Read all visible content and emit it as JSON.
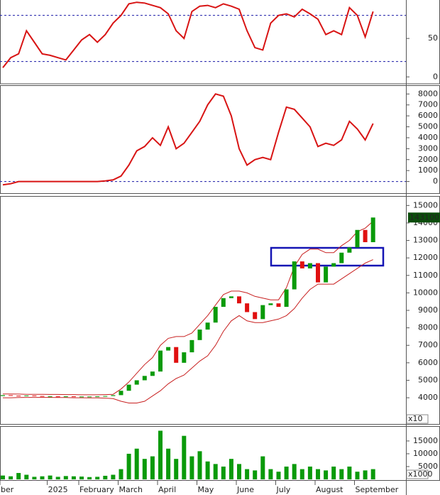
{
  "chart_data": [
    {
      "type": "line",
      "ylim": [
        -9,
        100
      ],
      "yticks": [
        0,
        50
      ],
      "reference_lines": [
        20,
        80
      ],
      "reference_color": "#1a1aa8",
      "series": [
        {
          "color": "#d81414",
          "values": [
            12,
            25,
            30,
            60,
            45,
            30,
            28,
            25,
            22,
            35,
            48,
            55,
            45,
            55,
            70,
            80,
            95,
            97,
            96,
            93,
            90,
            82,
            60,
            50,
            85,
            92,
            93,
            90,
            95,
            92,
            88,
            60,
            38,
            35,
            70,
            80,
            82,
            78,
            88,
            82,
            75,
            55,
            60,
            55,
            90,
            80,
            52,
            85
          ]
        }
      ]
    },
    {
      "type": "line",
      "ylim": [
        -1000,
        8800
      ],
      "yticks": [
        0,
        1000,
        2000,
        3000,
        4000,
        5000,
        6000,
        7000,
        8000
      ],
      "reference_lines": [
        0
      ],
      "reference_color": "#1a1aa8",
      "series": [
        {
          "color": "#d81414",
          "values": [
            -300,
            -200,
            0,
            0,
            0,
            0,
            0,
            0,
            0,
            0,
            0,
            0,
            0,
            50,
            150,
            500,
            1500,
            2800,
            3200,
            4000,
            3300,
            5000,
            3000,
            3500,
            4500,
            5500,
            7000,
            8000,
            7800,
            6000,
            3000,
            1500,
            2000,
            2200,
            2000,
            4500,
            6800,
            6600,
            5800,
            5000,
            3200,
            3500,
            3300,
            3800,
            5500,
            4800,
            3800,
            5300
          ]
        }
      ]
    },
    {
      "type": "candlestick",
      "ylim": [
        2500,
        15500
      ],
      "yticks": [
        4000,
        5000,
        6000,
        7000,
        8000,
        9000,
        10000,
        11000,
        12000,
        13000,
        14000,
        15000
      ],
      "y_unit_label": "x10",
      "last_label": "143100.0",
      "up_color": "#0a9a0a",
      "down_color": "#e01010",
      "open": [
        4100,
        4150,
        4120,
        4100,
        4130,
        4100,
        4080,
        4080,
        4070,
        4080,
        4060,
        4070,
        4070,
        4080,
        4100,
        4150,
        4400,
        4750,
        5000,
        5250,
        5500,
        6700,
        6900,
        6000,
        6600,
        7300,
        7900,
        8300,
        9200,
        9700,
        9800,
        9400,
        8900,
        8500,
        9300,
        9400,
        9200,
        10200,
        11800,
        11400,
        11700,
        10600,
        11500,
        11700,
        12300,
        12600,
        13600,
        12900
      ],
      "close": [
        4150,
        4120,
        4100,
        4130,
        4100,
        4080,
        4080,
        4070,
        4080,
        4060,
        4070,
        4070,
        4080,
        4100,
        4150,
        4400,
        4750,
        5000,
        5250,
        5500,
        6700,
        6900,
        6000,
        6600,
        7300,
        7900,
        8300,
        9200,
        9700,
        9800,
        9400,
        8900,
        8500,
        9300,
        9400,
        9200,
        10200,
        11800,
        11400,
        11700,
        10600,
        11500,
        11700,
        12300,
        12600,
        13600,
        12900,
        14310
      ],
      "bands": [
        {
          "color": "#c82020",
          "values": [
            4220,
            4220,
            4210,
            4200,
            4200,
            4200,
            4190,
            4190,
            4180,
            4180,
            4170,
            4170,
            4170,
            4180,
            4200,
            4500,
            4900,
            5400,
            5900,
            6300,
            7000,
            7400,
            7500,
            7500,
            7700,
            8200,
            8700,
            9300,
            9900,
            10100,
            10100,
            10000,
            9800,
            9700,
            9600,
            9600,
            10300,
            11500,
            12200,
            12500,
            12500,
            12300,
            12300,
            12700,
            13000,
            13500,
            13700,
            14100
          ]
        },
        {
          "color": "#c82020",
          "values": [
            4000,
            4000,
            4010,
            4020,
            4020,
            4020,
            4020,
            4010,
            4010,
            4000,
            4000,
            3990,
            3990,
            3980,
            3950,
            3800,
            3700,
            3700,
            3800,
            4100,
            4400,
            4800,
            5100,
            5300,
            5700,
            6100,
            6400,
            7000,
            7800,
            8400,
            8700,
            8400,
            8300,
            8300,
            8400,
            8500,
            8700,
            9100,
            9700,
            10200,
            10500,
            10500,
            10500,
            10800,
            11100,
            11400,
            11700,
            11900
          ]
        }
      ]
    },
    {
      "type": "bar",
      "ylim": [
        0,
        20800
      ],
      "yticks": [
        5000,
        10000,
        15000
      ],
      "y_unit_label": "x1000",
      "color": "#0a9a0a",
      "values": [
        1500,
        1200,
        2500,
        1800,
        1000,
        1200,
        1500,
        1000,
        1300,
        1200,
        1100,
        900,
        1000,
        1400,
        1800,
        4000,
        10000,
        12000,
        8000,
        9000,
        19000,
        12000,
        8000,
        17000,
        9000,
        11000,
        7000,
        6000,
        5000,
        8000,
        6000,
        4000,
        3500,
        9000,
        4000,
        3000,
        5000,
        6000,
        4000,
        5000,
        4000,
        3500,
        5000,
        4000,
        5000,
        3000,
        3500,
        4000
      ],
      "categories": [
        "ber",
        null,
        null,
        null,
        null,
        null,
        "2025",
        null,
        null,
        null,
        "February",
        null,
        null,
        null,
        null,
        "March",
        null,
        null,
        null,
        null,
        "April",
        null,
        null,
        null,
        null,
        "May",
        null,
        null,
        null,
        null,
        "June",
        null,
        null,
        null,
        null,
        "July",
        null,
        null,
        null,
        null,
        "August",
        null,
        null,
        null,
        null,
        "September",
        null,
        null
      ]
    }
  ]
}
